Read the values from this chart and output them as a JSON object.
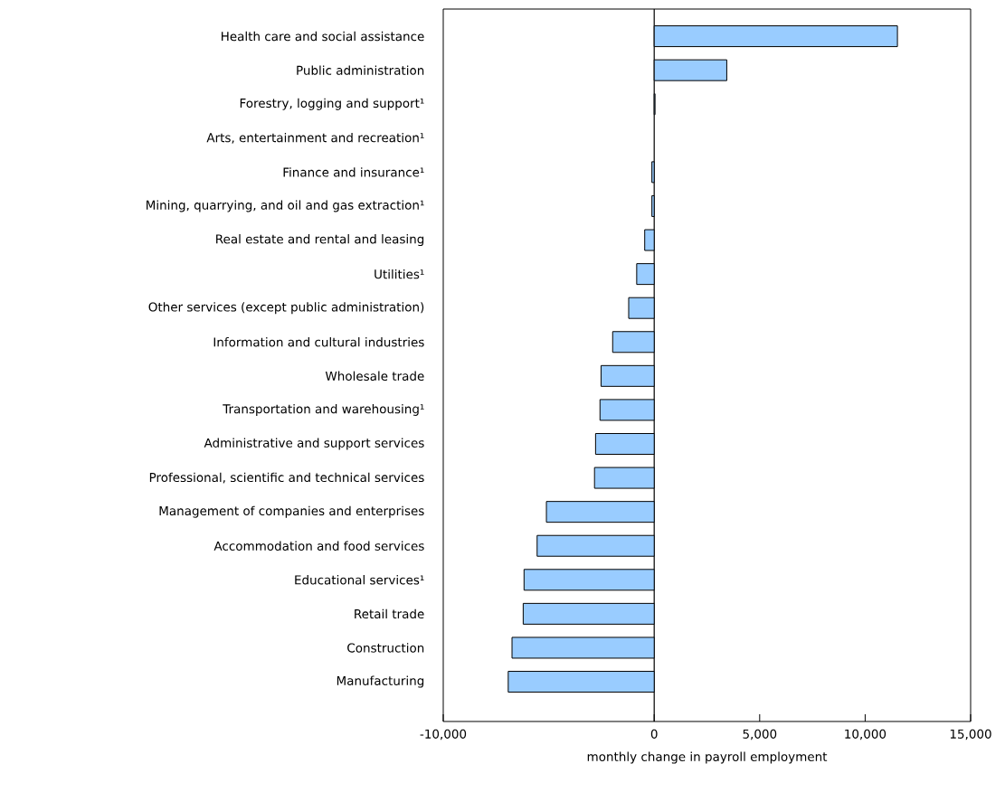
{
  "chart_data": {
    "type": "bar",
    "orientation": "horizontal",
    "xlabel": "monthly change in payroll employment",
    "categories": [
      "Health care and social assistance",
      "Public administration",
      "Forestry, logging and support¹",
      "Arts, entertainment and recreation¹",
      "Finance and insurance¹",
      "Mining, quarrying, and oil and gas extraction¹",
      "Real estate and rental and leasing",
      "Utilities¹",
      "Other services (except public administration)",
      "Information and cultural industries",
      "Wholesale trade",
      "Transportation and warehousing¹",
      "Administrative and support services",
      "Professional, scientific and technical services",
      "Management of companies and enterprises",
      "Accommodation and food services",
      "Educational services¹",
      "Retail trade",
      "Construction",
      "Manufacturing"
    ],
    "values": [
      11530,
      3440,
      40,
      0,
      -110,
      -110,
      -450,
      -830,
      -1210,
      -1970,
      -2520,
      -2570,
      -2780,
      -2830,
      -5110,
      -5550,
      -6170,
      -6210,
      -6740,
      -6920
    ],
    "color": "#99ccff",
    "xlim": [
      -10000,
      15000
    ],
    "xticks": [
      {
        "value": -10000,
        "label": "-10,000"
      },
      0,
      {
        "value": 5000,
        "label": "5,000"
      },
      {
        "value": 10000,
        "label": "10,000"
      },
      {
        "value": 15000,
        "label": "15,000"
      }
    ]
  }
}
